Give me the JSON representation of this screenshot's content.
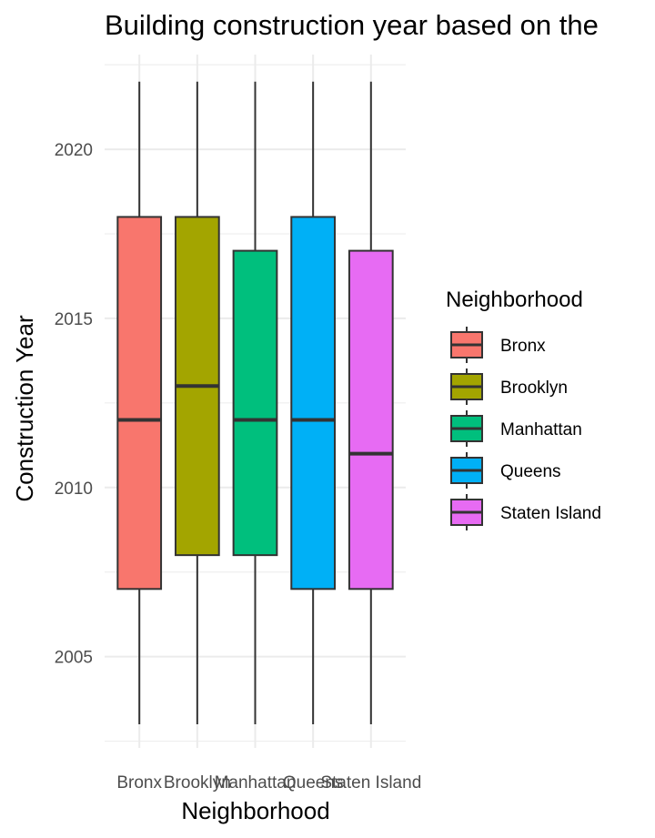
{
  "chart_data": {
    "type": "boxplot",
    "title": "Building construction year based on the",
    "xlabel": "Neighborhood",
    "ylabel": "Construction Year",
    "categories": [
      "Bronx",
      "Brooklyn",
      "Manhattan",
      "Queens",
      "Staten Island"
    ],
    "ylim": [
      2002.3,
      2022.8
    ],
    "yticks": [
      2005,
      2010,
      2015,
      2020
    ],
    "boxes": [
      {
        "category": "Bronx",
        "min": 2003,
        "q1": 2007,
        "median": 2012,
        "q3": 2018,
        "max": 2022,
        "color": "#F8766D"
      },
      {
        "category": "Brooklyn",
        "min": 2003,
        "q1": 2008,
        "median": 2013,
        "q3": 2018,
        "max": 2022,
        "color": "#A3A500"
      },
      {
        "category": "Manhattan",
        "min": 2003,
        "q1": 2008,
        "median": 2012,
        "q3": 2017,
        "max": 2022,
        "color": "#00BF7D"
      },
      {
        "category": "Queens",
        "min": 2003,
        "q1": 2007,
        "median": 2012,
        "q3": 2018,
        "max": 2022,
        "color": "#00B0F6"
      },
      {
        "category": "Staten Island",
        "min": 2003,
        "q1": 2007,
        "median": 2011,
        "q3": 2017,
        "max": 2022,
        "color": "#E76BF3"
      }
    ],
    "legend": {
      "title": "Neighborhood",
      "position": "right",
      "entries": [
        "Bronx",
        "Brooklyn",
        "Manhattan",
        "Queens",
        "Staten Island"
      ]
    },
    "grid": true
  }
}
